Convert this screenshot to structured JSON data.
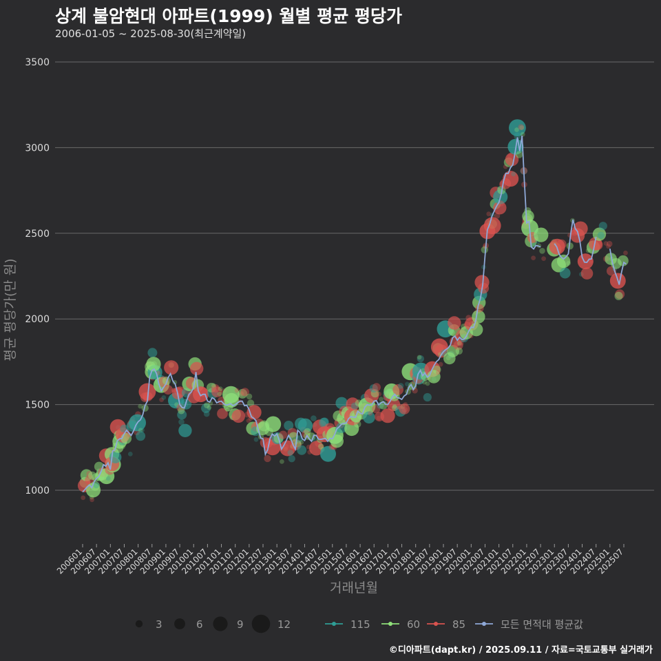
{
  "header": {
    "title": "상계 불암현대 아파트(1999) 월별 평균 평당가",
    "subtitle": "2006-01-05 ~ 2025-08-30(최근계약일)"
  },
  "footer": {
    "credit": "©디아파트(dapt.kr) / 2025.09.11 / 자료=국토교통부 실거래가"
  },
  "colors": {
    "s115": "#2f9e96",
    "s60": "#8fe07a",
    "s85": "#d9534f",
    "avg": "#8fa9d8",
    "grid": "#6a6a6a"
  },
  "chart_data": {
    "type": "scatter",
    "title": "상계 불암현대 아파트(1999) 월별 평균 평당가",
    "xlabel": "거래년월",
    "ylabel": "평균 평당가(만 원)",
    "ylim": [
      780,
      3520
    ],
    "yticks": [
      1000,
      1500,
      2000,
      2500,
      3000,
      3500
    ],
    "x_start": "2006-01",
    "x_end": "2025-08",
    "xticks": [
      "200601",
      "200607",
      "200701",
      "200707",
      "200801",
      "200807",
      "200901",
      "200907",
      "201001",
      "201007",
      "201101",
      "201107",
      "201201",
      "201207",
      "201301",
      "201307",
      "201401",
      "201407",
      "201501",
      "201507",
      "201601",
      "201607",
      "201701",
      "201707",
      "201801",
      "201807",
      "201901",
      "201907",
      "202001",
      "202007",
      "202101",
      "202107",
      "202201",
      "202207",
      "202301",
      "202307",
      "202401",
      "202407",
      "202501",
      "202507"
    ],
    "size_legend": {
      "values": [
        3,
        6,
        9,
        12
      ]
    },
    "series_legend": [
      "115",
      "60",
      "85",
      "모든 면적대 평균값"
    ],
    "avg_anchors": [
      [
        "200601",
        990
      ],
      [
        "200602",
        1005
      ],
      [
        "200603",
        1020
      ],
      [
        "200604",
        1030
      ],
      [
        "200605",
        1015
      ],
      [
        "200606",
        1050
      ],
      [
        "200607",
        1070
      ],
      [
        "200608",
        1080
      ],
      [
        "200609",
        1110
      ],
      [
        "200610",
        1150
      ],
      [
        "200611",
        1140
      ],
      [
        "200612",
        1160
      ],
      [
        "200701",
        1120
      ],
      [
        "200702",
        1230
      ],
      [
        "200705",
        1300
      ],
      [
        "200708",
        1350
      ],
      [
        "200710",
        1320
      ],
      [
        "200801",
        1400
      ],
      [
        "200803",
        1440
      ],
      [
        "200805",
        1520
      ],
      [
        "200806",
        1660
      ],
      [
        "200807",
        1700
      ],
      [
        "200809",
        1680
      ],
      [
        "200811",
        1580
      ],
      [
        "200901",
        1620
      ],
      [
        "200903",
        1680
      ],
      [
        "200905",
        1620
      ],
      [
        "200907",
        1500
      ],
      [
        "200909",
        1480
      ],
      [
        "200911",
        1560
      ],
      [
        "201001",
        1600
      ],
      [
        "201002",
        1690
      ],
      [
        "201003",
        1580
      ],
      [
        "201005",
        1560
      ],
      [
        "201007",
        1520
      ],
      [
        "201009",
        1540
      ],
      [
        "201011",
        1510
      ],
      [
        "201101",
        1520
      ],
      [
        "201104",
        1500
      ],
      [
        "201107",
        1500
      ],
      [
        "201110",
        1520
      ],
      [
        "201201",
        1470
      ],
      [
        "201203",
        1420
      ],
      [
        "201205",
        1350
      ],
      [
        "201207",
        1300
      ],
      [
        "201208",
        1210
      ],
      [
        "201210",
        1300
      ],
      [
        "201301",
        1330
      ],
      [
        "201303",
        1240
      ],
      [
        "201306",
        1320
      ],
      [
        "201309",
        1240
      ],
      [
        "201310",
        1350
      ],
      [
        "201312",
        1300
      ],
      [
        "201403",
        1300
      ],
      [
        "201406",
        1320
      ],
      [
        "201409",
        1300
      ],
      [
        "201501",
        1300
      ],
      [
        "201503",
        1360
      ],
      [
        "201506",
        1390
      ],
      [
        "201509",
        1430
      ],
      [
        "201601",
        1450
      ],
      [
        "201604",
        1500
      ],
      [
        "201607",
        1520
      ],
      [
        "201610",
        1510
      ],
      [
        "201701",
        1500
      ],
      [
        "201704",
        1560
      ],
      [
        "201707",
        1530
      ],
      [
        "201710",
        1600
      ],
      [
        "201801",
        1610
      ],
      [
        "201803",
        1700
      ],
      [
        "201806",
        1660
      ],
      [
        "201809",
        1730
      ],
      [
        "201812",
        1790
      ],
      [
        "201903",
        1830
      ],
      [
        "201906",
        1900
      ],
      [
        "201909",
        1880
      ],
      [
        "201912",
        1930
      ],
      [
        "202003",
        1990
      ],
      [
        "202006",
        2200
      ],
      [
        "202008",
        2520
      ],
      [
        "202010",
        2600
      ],
      [
        "202101",
        2680
      ],
      [
        "202104",
        2850
      ],
      [
        "202107",
        2900
      ],
      [
        "202109",
        3060
      ],
      [
        "202110",
        2980
      ],
      [
        "202111",
        3070
      ],
      [
        "202112",
        2800
      ],
      [
        "202201",
        2560
      ],
      [
        "202202",
        2570
      ],
      [
        "202203",
        2420
      ],
      [
        "202207",
        2420
      ]
    ],
    "avg_anchors_2": [
      [
        "202301",
        2440
      ],
      [
        "202303",
        2380
      ],
      [
        "202305",
        2350
      ],
      [
        "202307",
        2380
      ],
      [
        "202309",
        2580
      ],
      [
        "202311",
        2510
      ],
      [
        "202401",
        2360
      ],
      [
        "202403",
        2330
      ],
      [
        "202405",
        2350
      ],
      [
        "202407",
        2480
      ]
    ],
    "avg_anchors_3": [
      [
        "202501",
        2410
      ],
      [
        "202503",
        2280
      ],
      [
        "202505",
        2200
      ],
      [
        "202507",
        2330
      ],
      [
        "202508",
        2320
      ]
    ],
    "x_ranges": [
      [
        "2006-01",
        "2025-08"
      ]
    ]
  }
}
